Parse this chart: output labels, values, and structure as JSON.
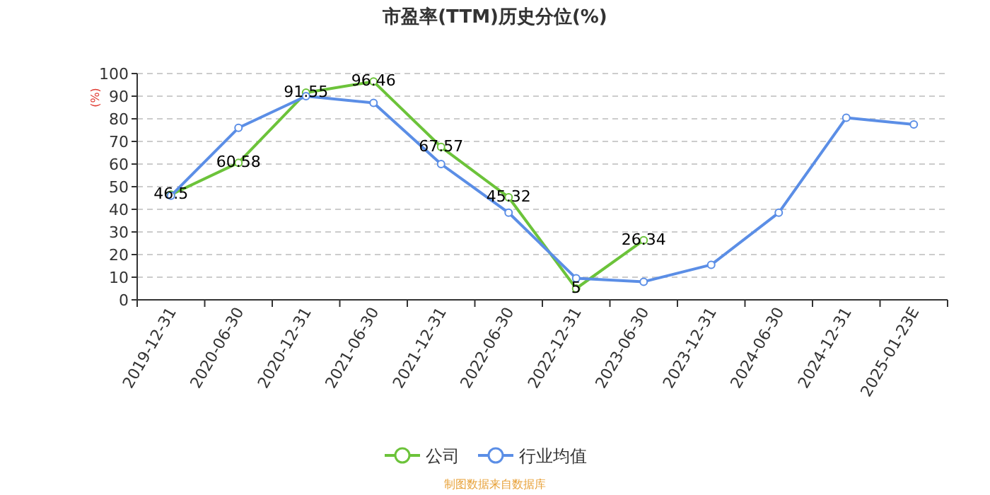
{
  "chart_data": {
    "type": "line",
    "title": "市盈率(TTM)历史分位(%)",
    "ylabel": "(%)",
    "categories": [
      "2019-12-31",
      "2020-06-30",
      "2020-12-31",
      "2021-06-30",
      "2021-12-31",
      "2022-06-30",
      "2022-12-31",
      "2023-06-30",
      "2023-12-31",
      "2024-06-30",
      "2024-12-31",
      "2025-01-23E"
    ],
    "series": [
      {
        "name": "公司",
        "color": "#6cc33a",
        "values": [
          46.5,
          60.58,
          91.55,
          96.46,
          67.57,
          45.32,
          5,
          26.34,
          null,
          null,
          null,
          null
        ],
        "value_labels": [
          "46.5",
          "60.58",
          "91.55",
          "96.46",
          "67.57",
          "45.32",
          "5",
          "26.34",
          null,
          null,
          null,
          null
        ]
      },
      {
        "name": "行业均值",
        "color": "#5b8ee6",
        "values": [
          46,
          76,
          90,
          87,
          60,
          38.5,
          9.5,
          8,
          15.5,
          38.5,
          80.5,
          77.5
        ]
      }
    ],
    "ylim": [
      0,
      100
    ],
    "yticks": [
      0,
      10,
      20,
      30,
      40,
      50,
      60,
      70,
      80,
      90,
      100
    ],
    "grid": "y",
    "legend": "bottom",
    "marker": "circle",
    "line_style": "solid",
    "annotations": [
      "制图数据来自数据库"
    ]
  }
}
